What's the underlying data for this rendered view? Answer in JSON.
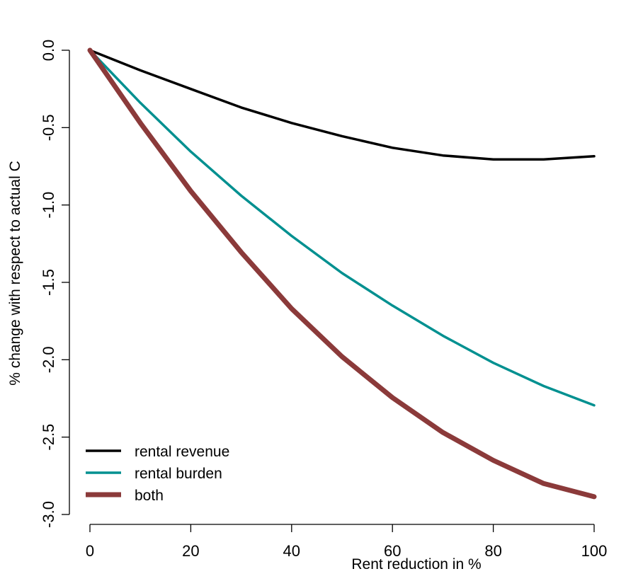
{
  "chart_data": {
    "type": "line",
    "title": "",
    "xlabel": "Rent reduction in %",
    "ylabel": "% change with respect to actual C",
    "xlim": [
      -4,
      100
    ],
    "ylim": [
      -3.0,
      0.1
    ],
    "x_ticks": [
      0,
      20,
      40,
      60,
      80,
      100
    ],
    "x_tick_labels": [
      "0",
      "20",
      "40",
      "60",
      "80",
      "100"
    ],
    "y_ticks": [
      0.0,
      -0.5,
      -1.0,
      -1.5,
      -2.0,
      -2.5,
      -3.0
    ],
    "y_tick_labels": [
      "0.0",
      "-0.5",
      "-1.0",
      "-1.5",
      "-2.0",
      "-2.5",
      "-3.0"
    ],
    "grid": false,
    "legend_position": "bottom-left",
    "x": [
      0,
      10,
      20,
      30,
      40,
      50,
      60,
      70,
      80,
      90,
      100
    ],
    "series": [
      {
        "name": "rental revenue",
        "color": "#000000",
        "values": [
          0.0,
          -0.13,
          -0.25,
          -0.37,
          -0.47,
          -0.555,
          -0.63,
          -0.68,
          -0.705,
          -0.705,
          -0.685
        ]
      },
      {
        "name": "rental burden",
        "color": "#009090",
        "values": [
          0.0,
          -0.34,
          -0.655,
          -0.94,
          -1.2,
          -1.44,
          -1.65,
          -1.845,
          -2.02,
          -2.17,
          -2.295
        ]
      },
      {
        "name": "both",
        "color": "#8b3a3a",
        "values": [
          0.0,
          -0.47,
          -0.91,
          -1.305,
          -1.67,
          -1.98,
          -2.245,
          -2.47,
          -2.65,
          -2.8,
          -2.885
        ]
      }
    ]
  }
}
